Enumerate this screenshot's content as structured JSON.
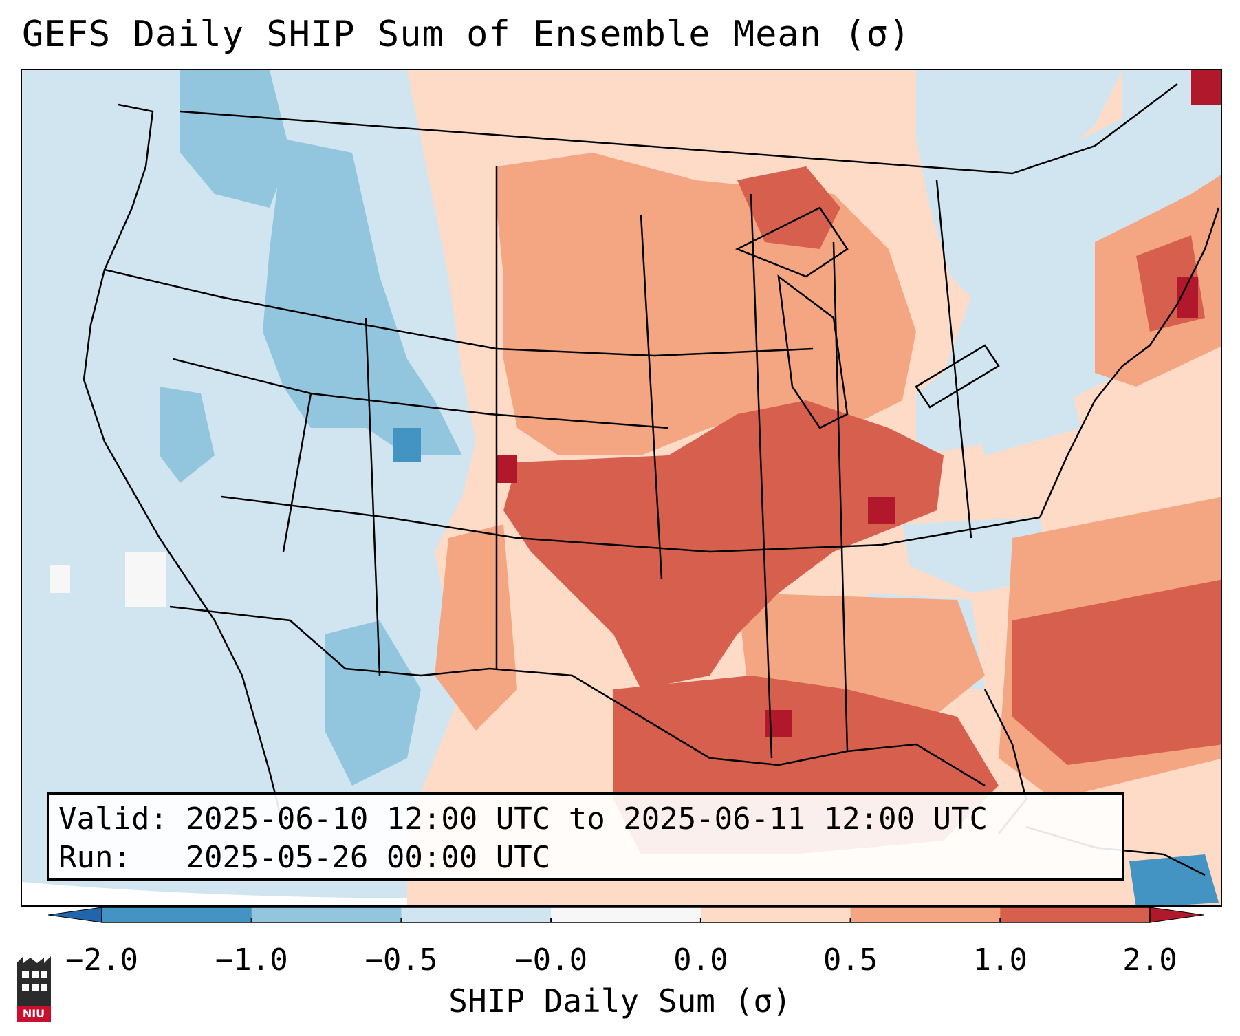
{
  "title": "GEFS Daily SHIP Sum of Ensemble Mean (σ)",
  "info": {
    "valid_label": "Valid:",
    "valid_value": "2025-06-10 12:00 UTC to 2025-06-11 12:00 UTC",
    "run_label": "Run:",
    "run_value": "2025-05-26 00:00 UTC"
  },
  "colorbar": {
    "label": "SHIP Daily Sum (σ)",
    "ticks": [
      "−2.0",
      "−1.0",
      "−0.5",
      "−0.0",
      "0.0",
      "0.5",
      "1.0",
      "2.0"
    ],
    "colors": [
      "#2166ac",
      "#4393c3",
      "#92c5de",
      "#d1e5f0",
      "#f7f7f7",
      "#fddbc7",
      "#f4a582",
      "#d6604d",
      "#b2182b"
    ]
  },
  "logo": {
    "text": "NIU"
  },
  "palette": {
    "ocean_neg": "#d1e5f0",
    "light_blue": "#92c5de",
    "mid_blue": "#4393c3",
    "dark_blue": "#2166ac",
    "light_red": "#fddbc7",
    "mid_red": "#f4a582",
    "dark_red": "#d6604d",
    "deep_red": "#b2182b"
  }
}
